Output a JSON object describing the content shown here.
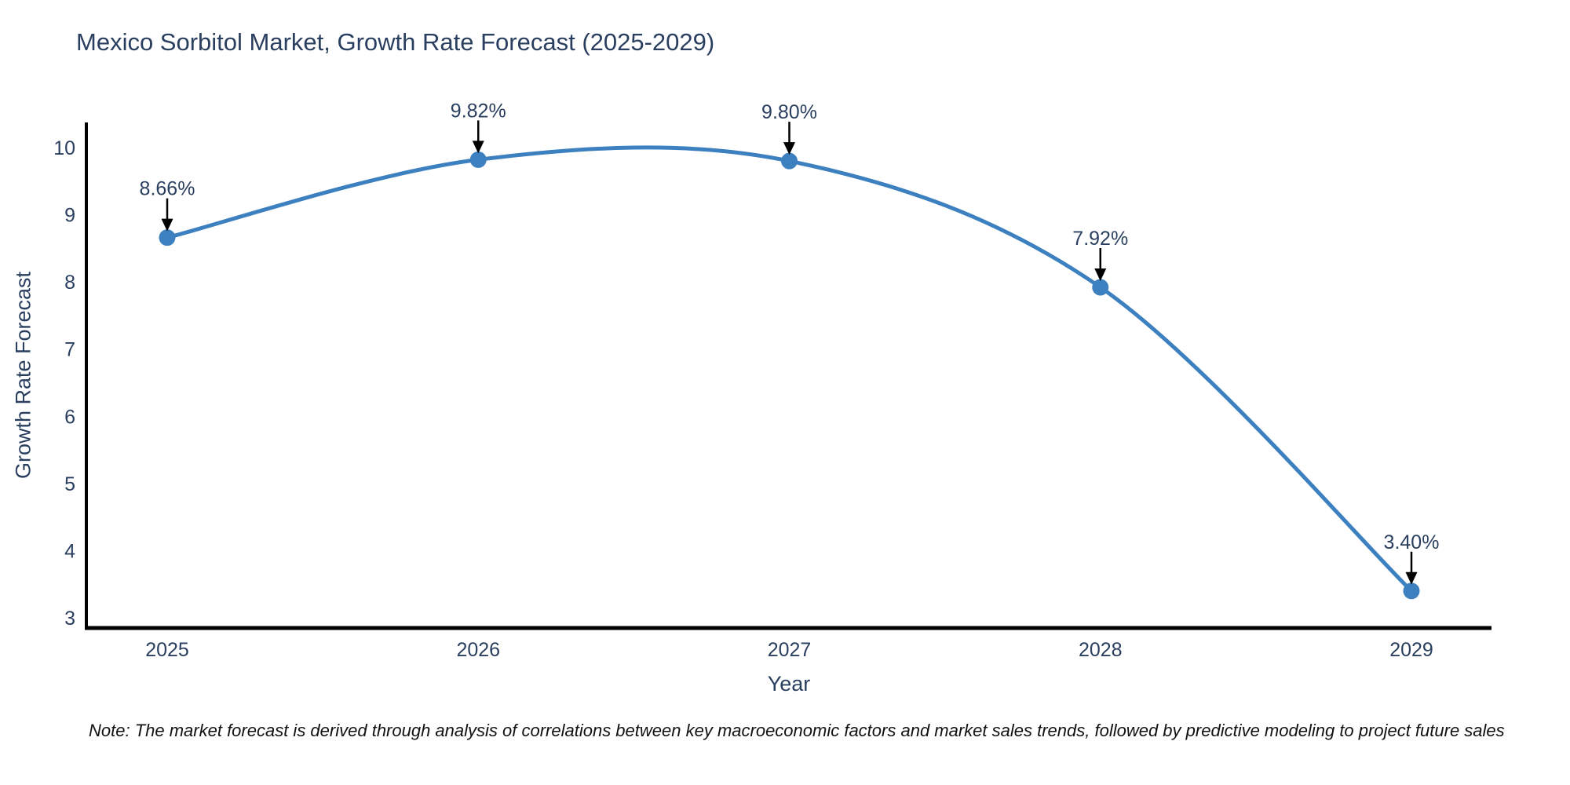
{
  "note": "Note: The market forecast is derived through analysis of correlations between key macroeconomic factors and market sales trends, followed by predictive modeling to project future sales",
  "chart_data": {
    "type": "line",
    "title": "Mexico Sorbitol Market, Growth Rate Forecast (2025-2029)",
    "xlabel": "Year",
    "ylabel": "Growth Rate Forecast",
    "x": [
      2025,
      2026,
      2027,
      2028,
      2029
    ],
    "y": [
      8.66,
      9.82,
      9.8,
      7.92,
      3.4
    ],
    "point_labels": [
      "8.66%",
      "9.82%",
      "9.80%",
      "7.92%",
      "3.40%"
    ],
    "yticks": [
      3,
      4,
      5,
      6,
      7,
      8,
      9,
      10
    ],
    "ylim": [
      2.85,
      10.4
    ],
    "grid": false,
    "legend": false,
    "line_shape": "spline",
    "colors": {
      "line": "#3d80c0",
      "marker": "#3d80c0",
      "axis": "#000000",
      "tick_text": "#2a3f5f",
      "annotation_text": "#2a3f5f",
      "arrow": "#000000",
      "background": "#ffffff"
    }
  }
}
